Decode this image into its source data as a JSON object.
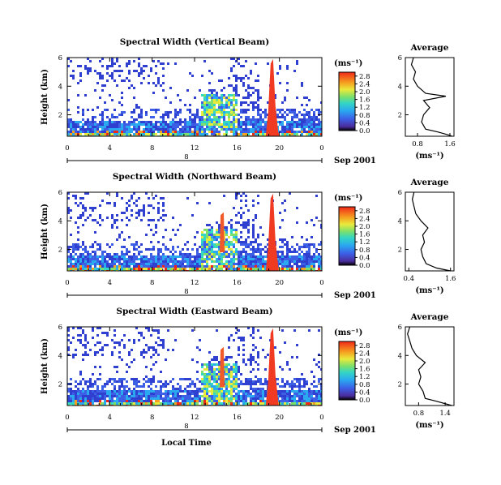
{
  "chart_data": [
    {
      "type": "heatmap",
      "title": "Spectral Width (Vertical Beam)",
      "ylabel": "Height (km)",
      "x_ticks": [
        "0",
        "4",
        "8",
        "12",
        "16",
        "20",
        "0"
      ],
      "xlim": [
        0,
        24
      ],
      "ylim": [
        0.5,
        6
      ],
      "y_ticks": [
        2,
        4,
        6
      ],
      "date_label": "Sep 2001",
      "date_row_label": "8",
      "colorbar": {
        "unit": "(ms⁻¹)",
        "ticks": [
          "0.0",
          "0.4",
          "0.8",
          "1.2",
          "1.6",
          "2.0",
          "2.4",
          "2.8"
        ],
        "range": [
          0,
          3.0
        ]
      },
      "average_profile": {
        "title": "Average",
        "xlabel": "(ms⁻¹)",
        "x_ticks": [
          "0.8",
          "1.6"
        ],
        "xlim": [
          0.5,
          1.7
        ],
        "ylim": [
          0.5,
          6
        ],
        "y_ticks": [
          2,
          4,
          6
        ],
        "points": [
          [
            1.65,
            0.5
          ],
          [
            1.55,
            0.6
          ],
          [
            1.3,
            0.8
          ],
          [
            1.0,
            1.0
          ],
          [
            0.9,
            1.5
          ],
          [
            0.95,
            2.0
          ],
          [
            1.1,
            2.5
          ],
          [
            0.95,
            3.0
          ],
          [
            1.5,
            3.3
          ],
          [
            1.0,
            3.5
          ],
          [
            0.8,
            4.0
          ],
          [
            0.7,
            4.5
          ],
          [
            0.75,
            5.0
          ],
          [
            0.65,
            5.5
          ],
          [
            0.7,
            6.0
          ]
        ]
      }
    },
    {
      "type": "heatmap",
      "title": "Spectral Width (Northward Beam)",
      "ylabel": "Height (km)",
      "x_ticks": [
        "0",
        "4",
        "8",
        "12",
        "16",
        "20",
        "0"
      ],
      "xlim": [
        0,
        24
      ],
      "ylim": [
        0.5,
        6
      ],
      "y_ticks": [
        2,
        4,
        6
      ],
      "date_label": "Sep 2001",
      "date_row_label": "8",
      "colorbar": {
        "unit": "(ms⁻¹)",
        "ticks": [
          "0.0",
          "0.4",
          "0.8",
          "1.2",
          "1.6",
          "2.0",
          "2.4",
          "2.8"
        ],
        "range": [
          0,
          3.0
        ]
      },
      "average_profile": {
        "title": "Average",
        "xlabel": "(ms⁻¹)",
        "x_ticks": [
          "0.4",
          "1.6"
        ],
        "xlim": [
          0.3,
          1.7
        ],
        "ylim": [
          0.5,
          6
        ],
        "y_ticks": [
          2,
          4,
          6
        ],
        "points": [
          [
            1.6,
            0.5
          ],
          [
            1.2,
            0.7
          ],
          [
            0.9,
            1.0
          ],
          [
            0.8,
            1.5
          ],
          [
            0.75,
            2.0
          ],
          [
            0.85,
            2.5
          ],
          [
            0.8,
            3.0
          ],
          [
            0.95,
            3.5
          ],
          [
            0.75,
            4.0
          ],
          [
            0.6,
            4.5
          ],
          [
            0.55,
            5.0
          ],
          [
            0.5,
            5.5
          ],
          [
            0.55,
            6.0
          ]
        ]
      }
    },
    {
      "type": "heatmap",
      "title": "Spectral Width (Eastward Beam)",
      "ylabel": "Height (km)",
      "xlabel": "Local Time",
      "x_ticks": [
        "0",
        "4",
        "8",
        "12",
        "16",
        "20",
        "0"
      ],
      "xlim": [
        0,
        24
      ],
      "ylim": [
        0.5,
        6
      ],
      "y_ticks": [
        2,
        4,
        6
      ],
      "date_label": "Sep 2001",
      "date_row_label": "8",
      "colorbar": {
        "unit": "(ms⁻¹)",
        "ticks": [
          "0.0",
          "0.4",
          "0.8",
          "1.2",
          "1.6",
          "2.0",
          "2.4",
          "2.8"
        ],
        "range": [
          0,
          3.0
        ]
      },
      "average_profile": {
        "title": "Average",
        "xlabel": "(ms⁻¹)",
        "x_ticks": [
          "0.8",
          "1.4"
        ],
        "xlim": [
          0.5,
          1.6
        ],
        "ylim": [
          0.5,
          6
        ],
        "y_ticks": [
          2,
          4,
          6
        ],
        "points": [
          [
            1.55,
            0.5
          ],
          [
            1.2,
            0.8
          ],
          [
            0.95,
            1.0
          ],
          [
            0.9,
            1.5
          ],
          [
            0.8,
            2.0
          ],
          [
            0.85,
            2.5
          ],
          [
            0.8,
            3.0
          ],
          [
            0.95,
            3.5
          ],
          [
            0.75,
            4.0
          ],
          [
            0.65,
            4.5
          ],
          [
            0.6,
            5.0
          ],
          [
            0.55,
            5.5
          ],
          [
            0.6,
            6.0
          ]
        ]
      }
    }
  ]
}
